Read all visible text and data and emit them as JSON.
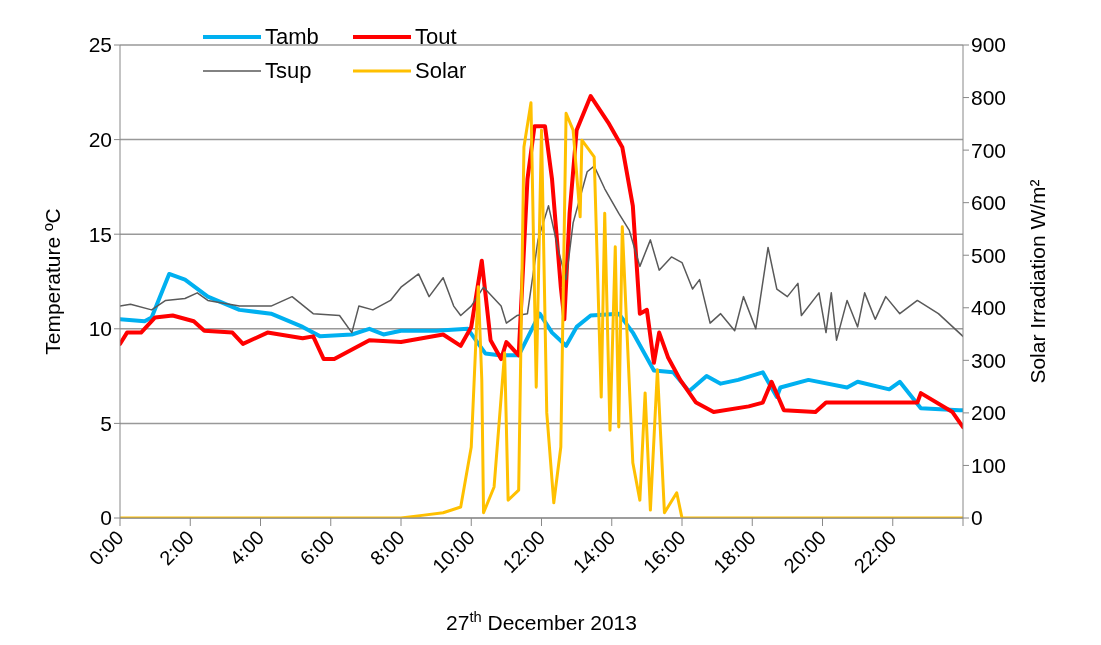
{
  "chart_data": {
    "type": "line",
    "xlabel": "27$^{th}$ December 2013",
    "ylabel": "Temperature ºC",
    "y2label": "Solar Irradiation W/m²",
    "xlim": [
      0,
      24
    ],
    "xticks": [
      {
        "value": 0,
        "label": "0:00"
      },
      {
        "value": 2,
        "label": "2:00"
      },
      {
        "value": 4,
        "label": "4:00"
      },
      {
        "value": 6,
        "label": "6:00"
      },
      {
        "value": 8,
        "label": "8:00"
      },
      {
        "value": 10,
        "label": "10:00"
      },
      {
        "value": 12,
        "label": "12:00"
      },
      {
        "value": 14,
        "label": "14:00"
      },
      {
        "value": 16,
        "label": "16:00"
      },
      {
        "value": 18,
        "label": "18:00"
      },
      {
        "value": 20,
        "label": "20:00"
      },
      {
        "value": 22,
        "label": "22:00"
      },
      {
        "value": 24,
        "label": null
      }
    ],
    "ylim": [
      0,
      25
    ],
    "yticks": [
      0,
      5,
      10,
      15,
      20,
      25
    ],
    "y2lim": [
      0,
      900
    ],
    "y2ticks": [
      0,
      100,
      200,
      300,
      400,
      500,
      600,
      700,
      800,
      900
    ],
    "grid": "y",
    "legend": "top",
    "marker": "none",
    "line_style": "solid",
    "series": [
      {
        "name": "Tamb",
        "color": "#00b0f0",
        "x": [
          0,
          0.7,
          0.9,
          1.4,
          1.85,
          2.5,
          3.4,
          4.3,
          5.2,
          5.7,
          6.6,
          7.1,
          7.5,
          8.0,
          9.0,
          9.9,
          10.4,
          10.8,
          11.35,
          11.95,
          12.3,
          12.7,
          13.0,
          13.4,
          14.2,
          14.6,
          15.2,
          15.75,
          16.2,
          16.7,
          17.1,
          17.6,
          18.3,
          18.7,
          18.8,
          19.6,
          20.7,
          21.0,
          21.9,
          22.2,
          22.8,
          23.9,
          24
        ],
        "values": [
          10.5,
          10.4,
          10.6,
          12.9,
          12.6,
          11.7,
          11.0,
          10.8,
          10.1,
          9.6,
          9.7,
          10.0,
          9.7,
          9.9,
          9.9,
          10.0,
          8.7,
          8.6,
          8.6,
          10.8,
          9.8,
          9.1,
          10.1,
          10.7,
          10.8,
          9.8,
          7.8,
          7.7,
          6.7,
          7.5,
          7.1,
          7.3,
          7.7,
          6.4,
          6.9,
          7.3,
          6.9,
          7.2,
          6.8,
          7.2,
          5.8,
          5.7,
          5.7
        ]
      },
      {
        "name": "Tout",
        "color": "#ff0000",
        "x": [
          0,
          0.2,
          0.6,
          1.0,
          1.5,
          2.1,
          2.4,
          3.2,
          3.5,
          4.2,
          5.2,
          5.5,
          5.8,
          6.1,
          7.1,
          8.0,
          9.2,
          9.7,
          10.0,
          10.3,
          10.55,
          10.85,
          11.0,
          11.35,
          11.6,
          11.8,
          12.1,
          12.3,
          12.55,
          12.65,
          12.8,
          13.0,
          13.4,
          13.9,
          14.3,
          14.6,
          14.8,
          15.0,
          15.2,
          15.35,
          15.6,
          15.95,
          16.4,
          16.9,
          17.9,
          18.3,
          18.55,
          18.9,
          19.8,
          20.1,
          22.7,
          22.8,
          23.7,
          24
        ],
        "values": [
          9.2,
          9.8,
          9.8,
          10.6,
          10.7,
          10.4,
          9.9,
          9.8,
          9.2,
          9.8,
          9.5,
          9.6,
          8.4,
          8.4,
          9.4,
          9.3,
          9.7,
          9.1,
          10.1,
          13.6,
          9.4,
          8.4,
          9.3,
          8.6,
          17.9,
          20.7,
          20.7,
          17.9,
          12.2,
          10.5,
          16.1,
          20.5,
          22.3,
          20.9,
          19.6,
          16.5,
          10.8,
          11.0,
          8.2,
          9.8,
          8.5,
          7.3,
          6.1,
          5.6,
          5.9,
          6.1,
          7.2,
          5.7,
          5.6,
          6.1,
          6.1,
          6.6,
          5.6,
          4.8
        ]
      },
      {
        "name": "Tsup",
        "color": "#595959",
        "x": [
          0,
          0.3,
          0.9,
          1.3,
          1.85,
          2.2,
          2.5,
          3.4,
          4.3,
          4.9,
          5.5,
          6.25,
          6.6,
          6.8,
          7.2,
          7.7,
          8.0,
          8.5,
          8.8,
          9.2,
          9.5,
          9.7,
          10.0,
          10.35,
          10.85,
          11.0,
          11.3,
          11.6,
          11.9,
          12.2,
          12.5,
          12.7,
          12.9,
          13.3,
          13.5,
          13.8,
          14.2,
          14.5,
          14.8,
          15.1,
          15.35,
          15.7,
          16.0,
          16.3,
          16.5,
          16.8,
          17.1,
          17.5,
          17.75,
          18.1,
          18.45,
          18.7,
          19.0,
          19.3,
          19.4,
          19.9,
          20.1,
          20.25,
          20.4,
          20.7,
          21.0,
          21.2,
          21.5,
          21.8,
          22.2,
          22.7,
          23.3,
          24.0
        ],
        "values": [
          11.2,
          11.3,
          11.0,
          11.5,
          11.6,
          11.9,
          11.5,
          11.2,
          11.2,
          11.7,
          10.8,
          10.7,
          9.8,
          11.2,
          11.0,
          11.5,
          12.2,
          12.9,
          11.7,
          12.7,
          11.2,
          10.7,
          11.2,
          12.2,
          11.2,
          10.3,
          10.7,
          10.8,
          14.7,
          16.5,
          14.0,
          12.6,
          15.6,
          18.3,
          18.6,
          17.4,
          16.1,
          15.2,
          13.3,
          14.7,
          13.1,
          13.8,
          13.5,
          12.1,
          12.6,
          10.3,
          10.8,
          9.9,
          11.7,
          10.0,
          14.3,
          12.1,
          11.7,
          12.4,
          10.7,
          11.9,
          9.8,
          11.9,
          9.4,
          11.5,
          10.1,
          11.9,
          10.5,
          11.7,
          10.8,
          11.5,
          10.8,
          9.6
        ]
      },
      {
        "name": "Solar",
        "color": "#ffc000",
        "axis": "y2",
        "x": [
          0,
          8.0,
          8.6,
          9.2,
          9.7,
          10.0,
          10.2,
          10.3,
          10.35,
          10.65,
          10.95,
          11.05,
          11.35,
          11.5,
          11.7,
          11.85,
          12.0,
          12.15,
          12.35,
          12.55,
          12.7,
          12.9,
          13.1,
          13.15,
          13.5,
          13.7,
          13.8,
          13.95,
          14.1,
          14.2,
          14.3,
          14.6,
          14.8,
          14.95,
          15.1,
          15.3,
          15.5,
          15.85,
          16.0,
          24
        ],
        "values": [
          0,
          0,
          5,
          10,
          21,
          135,
          440,
          263,
          10,
          59,
          314,
          34,
          53,
          706,
          790,
          249,
          738,
          200,
          29,
          135,
          770,
          738,
          573,
          719,
          687,
          230,
          580,
          167,
          516,
          173,
          554,
          105,
          34,
          238,
          15,
          282,
          10,
          48,
          0,
          0
        ]
      }
    ]
  }
}
